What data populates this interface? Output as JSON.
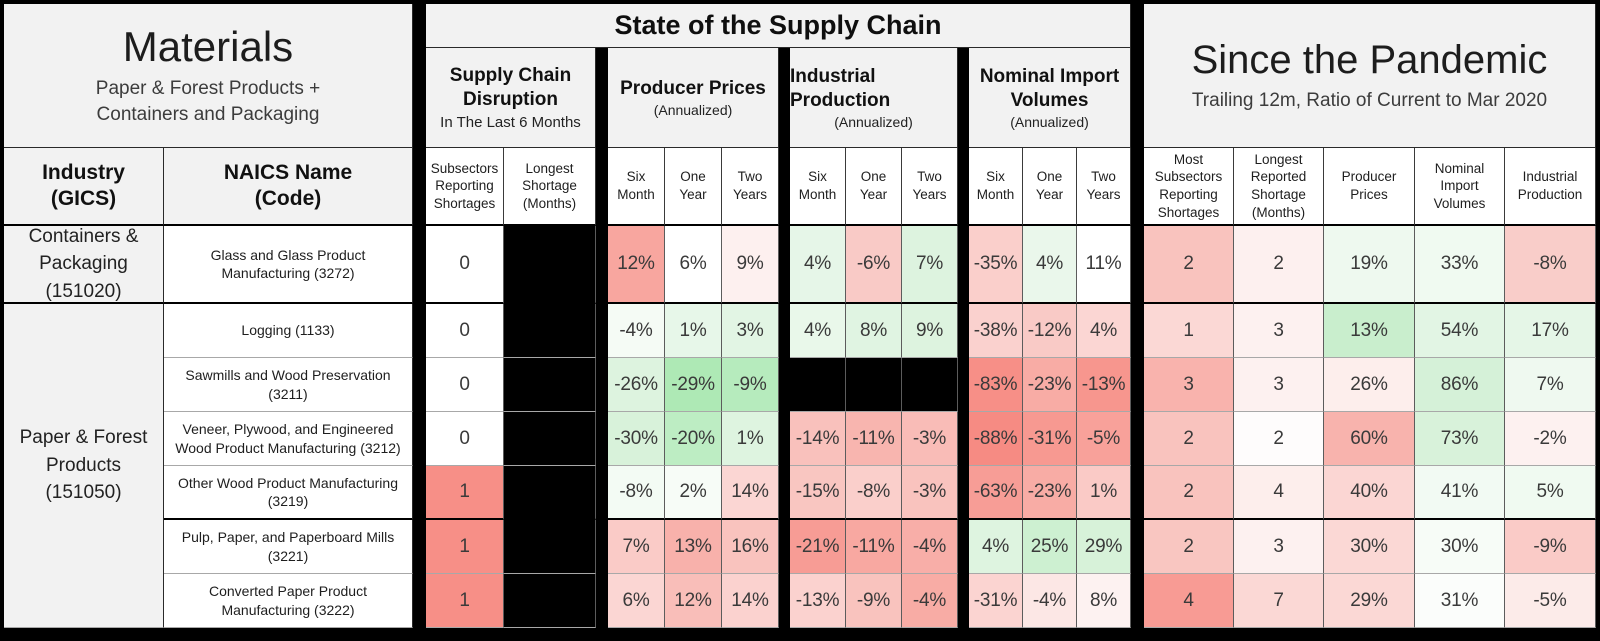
{
  "left_panel": {
    "title": "Materials",
    "subtitle": "Paper & Forest Products +\nContainers and Packaging",
    "industry_header": "Industry\n(GICS)",
    "naics_header": "NAICS Name\n(Code)"
  },
  "supply_chain": {
    "title": "State of the Supply Chain",
    "groups": [
      {
        "title": "Supply Chain Disruption",
        "subtitle": "In The Last 6 Months",
        "columns": [
          "Subsectors Reporting Shortages",
          "Longest Shortage (Months)"
        ]
      },
      {
        "title": "Producer Prices",
        "subtitle": "(Annualized)",
        "columns": [
          "Six Month",
          "One Year",
          "Two Years"
        ]
      },
      {
        "title": "Industrial Production",
        "subtitle": "(Annualized)",
        "columns": [
          "Six Month",
          "One Year",
          "Two Years"
        ]
      },
      {
        "title": "Nominal Import Volumes",
        "subtitle": "(Annualized)",
        "columns": [
          "Six Month",
          "One Year",
          "Two Years"
        ]
      }
    ]
  },
  "pandemic": {
    "title": "Since the Pandemic",
    "subtitle": "Trailing 12m, Ratio of Current to Mar 2020",
    "columns": [
      "Most Subsectors Reporting Shortages",
      "Longest Reported Shortage (Months)",
      "Producer Prices",
      "Nominal Import Volumes",
      "Industrial Production"
    ]
  },
  "industries": [
    {
      "label": "Containers &\nPackaging\n(151020)",
      "row_start": 0,
      "row_span": 1
    },
    {
      "label": "Paper & Forest\nProducts\n(151050)",
      "row_start": 1,
      "row_span": 6
    }
  ],
  "rows": [
    {
      "naics": "Glass and Glass Product Manufacturing (3272)",
      "cells": [
        {
          "v": "0",
          "bg": "#ffffff"
        },
        {
          "v": "",
          "bg": "#000000"
        },
        {
          "v": "12%",
          "bg": "#f8a69f"
        },
        {
          "v": "6%",
          "bg": "#ffffff"
        },
        {
          "v": "9%",
          "bg": "#fdf0ef"
        },
        {
          "v": "4%",
          "bg": "#e6f6e8"
        },
        {
          "v": "-6%",
          "bg": "#f9cac6"
        },
        {
          "v": "7%",
          "bg": "#ddf3df"
        },
        {
          "v": "-35%",
          "bg": "#facfcb"
        },
        {
          "v": "4%",
          "bg": "#eaf7eb"
        },
        {
          "v": "11%",
          "bg": "#ffffff"
        },
        {
          "v": "2",
          "bg": "#f9c3be"
        },
        {
          "v": "2",
          "bg": "#fdf0ef"
        },
        {
          "v": "19%",
          "bg": "#eef9ef"
        },
        {
          "v": "33%",
          "bg": "#f0faf1"
        },
        {
          "v": "-8%",
          "bg": "#f9cdc9"
        }
      ]
    },
    {
      "naics": "Logging (1133)",
      "cells": [
        {
          "v": "0",
          "bg": "#ffffff"
        },
        {
          "v": "",
          "bg": "#000000"
        },
        {
          "v": "-4%",
          "bg": "#f5fbf5"
        },
        {
          "v": "1%",
          "bg": "#e7f7e9"
        },
        {
          "v": "3%",
          "bg": "#e2f5e4"
        },
        {
          "v": "4%",
          "bg": "#e9f8ea"
        },
        {
          "v": "8%",
          "bg": "#e0f4e2"
        },
        {
          "v": "9%",
          "bg": "#ddf3df"
        },
        {
          "v": "-38%",
          "bg": "#fad1ce"
        },
        {
          "v": "-12%",
          "bg": "#f9cac6"
        },
        {
          "v": "4%",
          "bg": "#fbd6d3"
        },
        {
          "v": "1",
          "bg": "#fbd8d5"
        },
        {
          "v": "3",
          "bg": "#fdf1f0"
        },
        {
          "v": "13%",
          "bg": "#c9eecd"
        },
        {
          "v": "54%",
          "bg": "#e2f5e4"
        },
        {
          "v": "17%",
          "bg": "#e5f6e7"
        }
      ]
    },
    {
      "naics": "Sawmills and Wood Preservation (3211)",
      "cells": [
        {
          "v": "0",
          "bg": "#ffffff"
        },
        {
          "v": "",
          "bg": "#000000"
        },
        {
          "v": "-26%",
          "bg": "#ddf3df"
        },
        {
          "v": "-29%",
          "bg": "#aee9b5"
        },
        {
          "v": "-9%",
          "bg": "#b6ebbd"
        },
        {
          "v": "",
          "bg": "#000000"
        },
        {
          "v": "",
          "bg": "#000000"
        },
        {
          "v": "",
          "bg": "#000000"
        },
        {
          "v": "-83%",
          "bg": "#f78f87"
        },
        {
          "v": "-23%",
          "bg": "#f8aca5"
        },
        {
          "v": "-13%",
          "bg": "#f7968e"
        },
        {
          "v": "3",
          "bg": "#f9b3ad"
        },
        {
          "v": "3",
          "bg": "#fdf1f0"
        },
        {
          "v": "26%",
          "bg": "#fdeeec"
        },
        {
          "v": "86%",
          "bg": "#d5f1d8"
        },
        {
          "v": "7%",
          "bg": "#eff9f0"
        }
      ]
    },
    {
      "naics": "Veneer, Plywood, and Engineered Wood Product Manufacturing (3212)",
      "cells": [
        {
          "v": "0",
          "bg": "#ffffff"
        },
        {
          "v": "",
          "bg": "#000000"
        },
        {
          "v": "-30%",
          "bg": "#d8f2da"
        },
        {
          "v": "-20%",
          "bg": "#bdedc3"
        },
        {
          "v": "1%",
          "bg": "#def4e0"
        },
        {
          "v": "-14%",
          "bg": "#f9c1bc"
        },
        {
          "v": "-11%",
          "bg": "#f8b5af"
        },
        {
          "v": "-3%",
          "bg": "#f9bcb7"
        },
        {
          "v": "-88%",
          "bg": "#f68b83"
        },
        {
          "v": "-31%",
          "bg": "#f79991"
        },
        {
          "v": "-5%",
          "bg": "#f8a19a"
        },
        {
          "v": "2",
          "bg": "#f9c3be"
        },
        {
          "v": "2",
          "bg": "#fefcfc"
        },
        {
          "v": "60%",
          "bg": "#f8b3ad"
        },
        {
          "v": "73%",
          "bg": "#d8f2da"
        },
        {
          "v": "-2%",
          "bg": "#fdf1f0"
        }
      ]
    },
    {
      "naics": "Other Wood Product Manufacturing (3219)",
      "cells": [
        {
          "v": "1",
          "bg": "#f78f87"
        },
        {
          "v": "",
          "bg": "#000000"
        },
        {
          "v": "-8%",
          "bg": "#f3fbf4"
        },
        {
          "v": "2%",
          "bg": "#f7fcf7"
        },
        {
          "v": "14%",
          "bg": "#fbd6d3"
        },
        {
          "v": "-15%",
          "bg": "#f9c6c1"
        },
        {
          "v": "-8%",
          "bg": "#facfcb"
        },
        {
          "v": "-3%",
          "bg": "#f9c3be"
        },
        {
          "v": "-63%",
          "bg": "#f79d96"
        },
        {
          "v": "-23%",
          "bg": "#f8aca5"
        },
        {
          "v": "1%",
          "bg": "#facac6"
        },
        {
          "v": "2",
          "bg": "#f9c3be"
        },
        {
          "v": "4",
          "bg": "#fdeeec"
        },
        {
          "v": "40%",
          "bg": "#fbd6d3"
        },
        {
          "v": "41%",
          "bg": "#f2faf3"
        },
        {
          "v": "5%",
          "bg": "#f0faf1"
        }
      ]
    },
    {
      "naics": "Pulp, Paper, and Paperboard Mills (3221)",
      "cells": [
        {
          "v": "1",
          "bg": "#f78f87"
        },
        {
          "v": "",
          "bg": "#000000"
        },
        {
          "v": "7%",
          "bg": "#facbc7"
        },
        {
          "v": "13%",
          "bg": "#f8b1ab"
        },
        {
          "v": "16%",
          "bg": "#f9c3be"
        },
        {
          "v": "-21%",
          "bg": "#f79c95"
        },
        {
          "v": "-11%",
          "bg": "#f8a8a1"
        },
        {
          "v": "-4%",
          "bg": "#f8aea8"
        },
        {
          "v": "4%",
          "bg": "#def4e0"
        },
        {
          "v": "25%",
          "bg": "#cdf0d1"
        },
        {
          "v": "29%",
          "bg": "#d7f2d9"
        },
        {
          "v": "2",
          "bg": "#f9c6c1"
        },
        {
          "v": "3",
          "bg": "#fdf1f0"
        },
        {
          "v": "30%",
          "bg": "#fbd8d5"
        },
        {
          "v": "30%",
          "bg": "#f7fcf7"
        },
        {
          "v": "-9%",
          "bg": "#facbc7"
        }
      ]
    },
    {
      "naics": "Converted Paper Product Manufacturing (3222)",
      "cells": [
        {
          "v": "1",
          "bg": "#f78f87"
        },
        {
          "v": "",
          "bg": "#000000"
        },
        {
          "v": "6%",
          "bg": "#fbd6d3"
        },
        {
          "v": "12%",
          "bg": "#f9beb9"
        },
        {
          "v": "14%",
          "bg": "#fbd2cf"
        },
        {
          "v": "-13%",
          "bg": "#fbd2cf"
        },
        {
          "v": "-9%",
          "bg": "#f9c3be"
        },
        {
          "v": "-4%",
          "bg": "#f8aca5"
        },
        {
          "v": "-31%",
          "bg": "#fbd4d1"
        },
        {
          "v": "-4%",
          "bg": "#fce7e5"
        },
        {
          "v": "8%",
          "bg": "#fdf2f1"
        },
        {
          "v": "4",
          "bg": "#f89b94"
        },
        {
          "v": "7",
          "bg": "#fbd8d5"
        },
        {
          "v": "29%",
          "bg": "#fbd8d5"
        },
        {
          "v": "31%",
          "bg": "#fbfdfb"
        },
        {
          "v": "-5%",
          "bg": "#fcebe9"
        }
      ]
    }
  ],
  "chart_data": {
    "type": "heatmap",
    "title": "Materials — Paper & Forest Products + Containers and Packaging: State of the Supply Chain / Since the Pandemic",
    "columns": [
      "Supply Chain Disruption (Last 6 Months) — Subsectors Reporting Shortages",
      "Supply Chain Disruption (Last 6 Months) — Longest Shortage (Months)",
      "Producer Prices (Annualized) — Six Month",
      "Producer Prices (Annualized) — One Year",
      "Producer Prices (Annualized) — Two Years",
      "Industrial Production (Annualized) — Six Month",
      "Industrial Production (Annualized) — One Year",
      "Industrial Production (Annualized) — Two Years",
      "Nominal Import Volumes (Annualized) — Six Month",
      "Nominal Import Volumes (Annualized) — One Year",
      "Nominal Import Volumes (Annualized) — Two Years",
      "Since the Pandemic — Most Subsectors Reporting Shortages",
      "Since the Pandemic — Longest Reported Shortage (Months)",
      "Since the Pandemic — Producer Prices",
      "Since the Pandemic — Nominal Import Volumes",
      "Since the Pandemic — Industrial Production"
    ],
    "rows": [
      {
        "industry": "Containers & Packaging (151020)",
        "naics": "Glass and Glass Product Manufacturing (3272)",
        "values": [
          "0",
          null,
          "12%",
          "6%",
          "9%",
          "4%",
          "-6%",
          "7%",
          "-35%",
          "4%",
          "11%",
          "2",
          "2",
          "19%",
          "33%",
          "-8%"
        ]
      },
      {
        "industry": "Paper & Forest Products (151050)",
        "naics": "Logging (1133)",
        "values": [
          "0",
          null,
          "-4%",
          "1%",
          "3%",
          "4%",
          "8%",
          "9%",
          "-38%",
          "-12%",
          "4%",
          "1",
          "3",
          "13%",
          "54%",
          "17%"
        ]
      },
      {
        "industry": "Paper & Forest Products (151050)",
        "naics": "Sawmills and Wood Preservation (3211)",
        "values": [
          "0",
          null,
          "-26%",
          "-29%",
          "-9%",
          null,
          null,
          null,
          "-83%",
          "-23%",
          "-13%",
          "3",
          "3",
          "26%",
          "86%",
          "7%"
        ]
      },
      {
        "industry": "Paper & Forest Products (151050)",
        "naics": "Veneer, Plywood, and Engineered Wood Product Manufacturing (3212)",
        "values": [
          "0",
          null,
          "-30%",
          "-20%",
          "1%",
          "-14%",
          "-11%",
          "-3%",
          "-88%",
          "-31%",
          "-5%",
          "2",
          "2",
          "60%",
          "73%",
          "-2%"
        ]
      },
      {
        "industry": "Paper & Forest Products (151050)",
        "naics": "Other Wood Product Manufacturing (3219)",
        "values": [
          "1",
          null,
          "-8%",
          "2%",
          "14%",
          "-15%",
          "-8%",
          "-3%",
          "-63%",
          "-23%",
          "1%",
          "2",
          "4",
          "40%",
          "41%",
          "5%"
        ]
      },
      {
        "industry": "Paper & Forest Products (151050)",
        "naics": "Pulp, Paper, and Paperboard Mills (3221)",
        "values": [
          "1",
          null,
          "7%",
          "13%",
          "16%",
          "-21%",
          "-11%",
          "-4%",
          "4%",
          "25%",
          "29%",
          "2",
          "3",
          "30%",
          "30%",
          "-9%"
        ]
      },
      {
        "industry": "Paper & Forest Products (151050)",
        "naics": "Converted Paper Product Manufacturing (3222)",
        "values": [
          "1",
          null,
          "6%",
          "12%",
          "14%",
          "-13%",
          "-9%",
          "-4%",
          "-31%",
          "-4%",
          "8%",
          "4",
          "7",
          "29%",
          "31%",
          "-5%"
        ]
      }
    ],
    "colors": {
      "negative": "#f78f87",
      "neutral": "#ffffff",
      "positive": "#aee9b5",
      "no_data": "#000000"
    },
    "legend_position": "none",
    "grid": true
  }
}
